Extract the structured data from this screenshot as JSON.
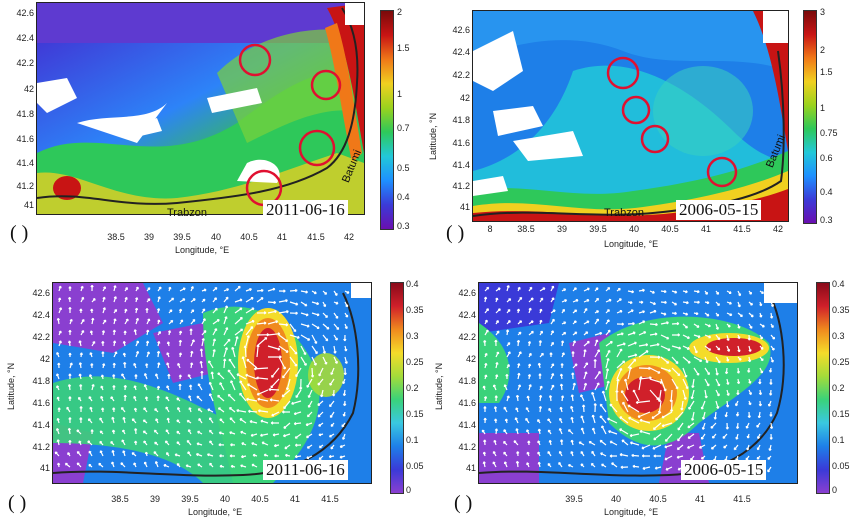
{
  "panels": [
    {
      "id": "a",
      "label": "(  )",
      "date": "2011-06-16",
      "kind": "chlorophyll",
      "latitude_ticks": [
        "42.6",
        "42.4",
        "42.2",
        "42",
        "41.8",
        "41.6",
        "41.4",
        "41.2",
        "41"
      ],
      "longitude_ticks": [
        "38.5",
        "39",
        "39.5",
        "40",
        "40.5",
        "41",
        "41.5",
        "42"
      ],
      "xlabel": "Longitude, °E",
      "ylabel": "",
      "colorbar_ticks": [
        "2",
        "1.5",
        "1",
        "0.7",
        "0.5",
        "0.4",
        "0.3"
      ],
      "places": [
        "Trabzon",
        "Batumi"
      ]
    },
    {
      "id": "b",
      "label": "(  )",
      "date": "2006-05-15",
      "kind": "chlorophyll",
      "latitude_ticks": [
        "42.6",
        "42.4",
        "42.2",
        "42",
        "41.8",
        "41.6",
        "41.4",
        "41.2",
        "41"
      ],
      "longitude_ticks": [
        "8",
        "38.5",
        "39",
        "39.5",
        "40",
        "40.5",
        "41",
        "41.5",
        "42"
      ],
      "xlabel": "Longitude, °E",
      "ylabel": "Latitude, °N",
      "colorbar_ticks": [
        "3",
        "2",
        "1.5",
        "1",
        "0.75",
        "0.6",
        "0.4",
        "0.3"
      ],
      "places": [
        "Trabzon",
        "Batumi"
      ]
    },
    {
      "id": "c",
      "label": "(  )",
      "date": "2011-06-16",
      "kind": "current",
      "latitude_ticks": [
        "42.6",
        "42.4",
        "42.2",
        "42",
        "41.8",
        "41.6",
        "41.4",
        "41.2",
        "41"
      ],
      "longitude_ticks": [
        "38.5",
        "39",
        "39.5",
        "40",
        "40.5",
        "41",
        "41.5"
      ],
      "xlabel": "Longitude, °E",
      "ylabel": "Latitude, °N",
      "colorbar_ticks": [
        "0.4",
        "0.35",
        "0.3",
        "0.25",
        "0.2",
        "0.15",
        "0.1",
        "0.05",
        "0"
      ],
      "places": []
    },
    {
      "id": "d",
      "label": "(  )",
      "date": "2006-05-15",
      "kind": "current",
      "latitude_ticks": [
        "42.6",
        "42.4",
        "42.2",
        "42",
        "41.8",
        "41.6",
        "41.4",
        "41.2",
        "41"
      ],
      "longitude_ticks": [
        "39.5",
        "40",
        "40.5",
        "41",
        "41.5"
      ],
      "xlabel": "Longitude, °E",
      "ylabel": "Latitude, °N",
      "colorbar_ticks": [
        "0.4",
        "0.35",
        "0.3",
        "0.25",
        "0.2",
        "0.15",
        "0.1",
        "0.05",
        "0"
      ],
      "places": []
    }
  ],
  "colors": {
    "chl_scale": [
      "#6a0fb0",
      "#3b3bd8",
      "#1e90ff",
      "#22c8d8",
      "#2ec85a",
      "#9ad21e",
      "#f0d020",
      "#f07818",
      "#c81414",
      "#7a0a0a"
    ],
    "cur_scale": [
      "#8a3fd0",
      "#3a3ad8",
      "#1e7fe8",
      "#3ac8e0",
      "#3ad27a",
      "#a4dc3a",
      "#f4dc2a",
      "#f08a1e",
      "#d0202a",
      "#8a0a1a"
    ]
  }
}
